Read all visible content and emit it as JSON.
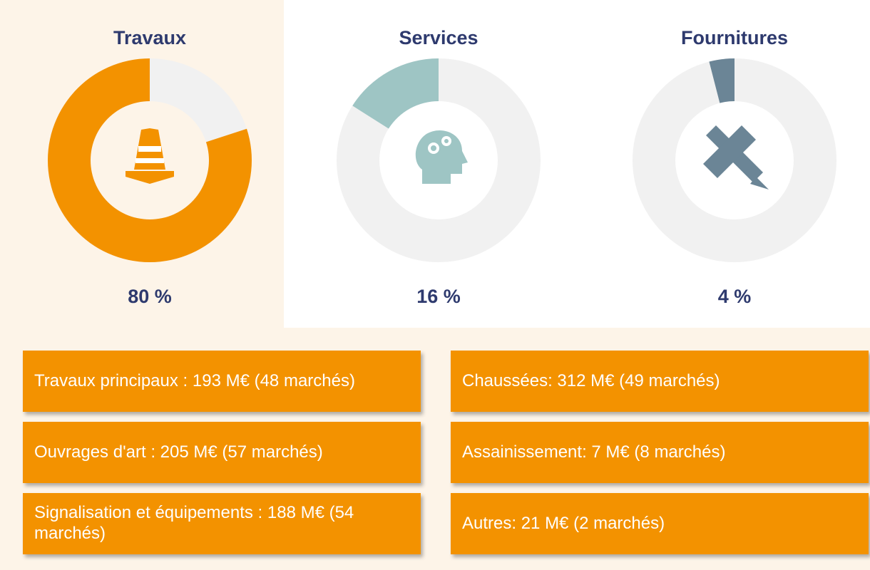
{
  "chart_data": [
    {
      "type": "donut",
      "title": "Travaux",
      "values": [
        80
      ],
      "value_labels": [
        "80 %"
      ],
      "color": "#f39200"
    },
    {
      "type": "donut",
      "title": "Services",
      "values": [
        16
      ],
      "value_labels": [
        "16 %"
      ],
      "color": "#9ec5c4"
    },
    {
      "type": "donut",
      "title": "Fournitures",
      "values": [
        4
      ],
      "value_labels": [
        "4 %"
      ],
      "color": "#6b8596"
    }
  ],
  "boxes": [
    "Travaux principaux : 193 M€ (48 marchés)",
    "Chaussées: 312 M€ (49 marchés)",
    "Ouvrages d'art : 205 M€ (57 marchés)",
    "Assainissement: 7 M€ (8 marchés)",
    "Signalisation et équipements : 188 M€ (54 marchés)",
    "Autres: 21 M€ (2 marchés)"
  ]
}
